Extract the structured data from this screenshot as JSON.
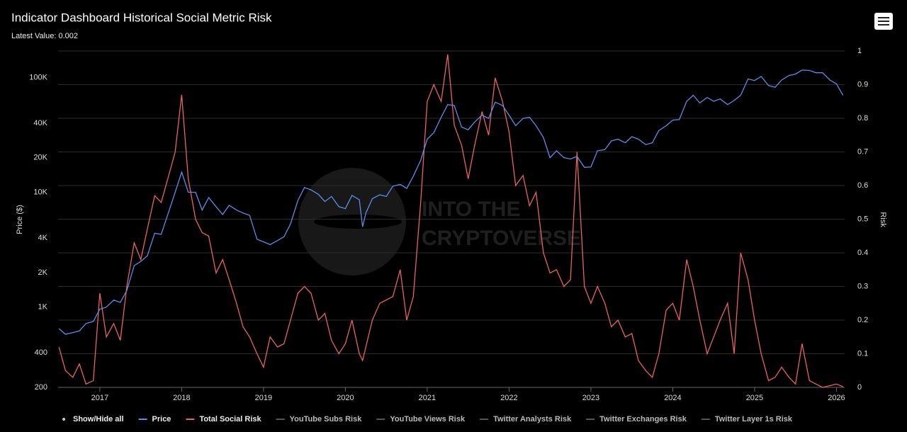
{
  "chart_data": {
    "type": "line",
    "title": "Indicator Dashboard Historical Social Metric Risk",
    "subtitle": "Latest Value: 0.002",
    "y_label": "Price ($)",
    "y2_label": "Risk",
    "watermark": [
      "INTO THE",
      "CRYPTOVERSE"
    ],
    "x": [
      2016.5,
      2016.58,
      2016.67,
      2016.75,
      2016.83,
      2016.92,
      2017,
      2017.08,
      2017.17,
      2017.25,
      2017.33,
      2017.42,
      2017.5,
      2017.58,
      2017.67,
      2017.75,
      2017.83,
      2017.92,
      2018,
      2018.08,
      2018.17,
      2018.25,
      2018.33,
      2018.42,
      2018.5,
      2018.58,
      2018.67,
      2018.75,
      2018.83,
      2018.92,
      2019,
      2019.08,
      2019.17,
      2019.25,
      2019.33,
      2019.42,
      2019.5,
      2019.58,
      2019.67,
      2019.75,
      2019.83,
      2019.92,
      2020,
      2020.08,
      2020.17,
      2020.21,
      2020.25,
      2020.33,
      2020.42,
      2020.5,
      2020.58,
      2020.67,
      2020.75,
      2020.83,
      2020.92,
      2021,
      2021.08,
      2021.17,
      2021.25,
      2021.33,
      2021.42,
      2021.5,
      2021.58,
      2021.67,
      2021.75,
      2021.83,
      2021.92,
      2022,
      2022.08,
      2022.17,
      2022.25,
      2022.33,
      2022.42,
      2022.5,
      2022.58,
      2022.67,
      2022.75,
      2022.83,
      2022.92,
      2023,
      2023.08,
      2023.17,
      2023.25,
      2023.33,
      2023.42,
      2023.5,
      2023.58,
      2023.67,
      2023.75,
      2023.83,
      2023.92,
      2024,
      2024.08,
      2024.17,
      2024.25,
      2024.33,
      2024.42,
      2024.5,
      2024.58,
      2024.67,
      2024.75,
      2024.83,
      2024.92,
      2025,
      2025.08,
      2025.17,
      2025.25,
      2025.33,
      2025.42,
      2025.5,
      2025.58,
      2025.67,
      2025.75,
      2025.83,
      2025.92,
      2026,
      2026.08
    ],
    "series": [
      {
        "name": "Price",
        "color": "#5b8ee6",
        "axis": "y",
        "values": [
          650,
          580,
          600,
          620,
          720,
          750,
          960,
          1000,
          1150,
          1100,
          1400,
          2300,
          2500,
          2800,
          4400,
          4300,
          6400,
          10000,
          15000,
          10000,
          10000,
          7000,
          9000,
          7500,
          6400,
          7700,
          7000,
          6600,
          6300,
          3900,
          3700,
          3500,
          3800,
          4100,
          5300,
          8500,
          11000,
          10500,
          9600,
          8300,
          9200,
          7500,
          7200,
          9400,
          8600,
          5000,
          6600,
          8800,
          9500,
          9200,
          11300,
          11700,
          10800,
          13800,
          19000,
          29000,
          33000,
          45000,
          58000,
          57000,
          37000,
          35000,
          41000,
          47000,
          44000,
          61000,
          57000,
          47000,
          38000,
          44000,
          45000,
          38000,
          30000,
          20000,
          23000,
          20000,
          19500,
          20500,
          16500,
          16600,
          23000,
          23500,
          28000,
          29000,
          27000,
          30500,
          29000,
          26000,
          27000,
          34500,
          38000,
          42500,
          43000,
          62000,
          70000,
          60000,
          67000,
          62000,
          65000,
          58000,
          63000,
          70000,
          97000,
          94000,
          102000,
          85000,
          82000,
          95000,
          104000,
          107000,
          116000,
          115000,
          110000,
          110000,
          95000,
          88000,
          70000
        ]
      },
      {
        "name": "Total Social Risk",
        "color": "#e8645f",
        "axis": "y2",
        "values": [
          0.12,
          0.05,
          0.03,
          0.07,
          0.01,
          0.02,
          0.28,
          0.15,
          0.19,
          0.14,
          0.3,
          0.43,
          0.38,
          0.47,
          0.57,
          0.55,
          0.62,
          0.7,
          0.87,
          0.62,
          0.5,
          0.46,
          0.45,
          0.34,
          0.38,
          0.32,
          0.25,
          0.18,
          0.15,
          0.1,
          0.06,
          0.15,
          0.12,
          0.13,
          0.2,
          0.28,
          0.3,
          0.28,
          0.2,
          0.22,
          0.14,
          0.1,
          0.13,
          0.2,
          0.1,
          0.08,
          0.12,
          0.2,
          0.25,
          0.26,
          0.27,
          0.35,
          0.2,
          0.27,
          0.55,
          0.85,
          0.9,
          0.85,
          0.99,
          0.78,
          0.72,
          0.62,
          0.72,
          0.82,
          0.75,
          0.92,
          0.85,
          0.76,
          0.6,
          0.63,
          0.54,
          0.58,
          0.4,
          0.34,
          0.35,
          0.3,
          0.32,
          0.7,
          0.3,
          0.25,
          0.3,
          0.25,
          0.18,
          0.2,
          0.15,
          0.16,
          0.08,
          0.05,
          0.03,
          0.1,
          0.23,
          0.25,
          0.2,
          0.38,
          0.3,
          0.2,
          0.1,
          0.15,
          0.2,
          0.25,
          0.1,
          0.4,
          0.32,
          0.2,
          0.1,
          0.02,
          0.03,
          0.06,
          0.03,
          0.01,
          0.13,
          0.02,
          0.01,
          0,
          0.005,
          0.01,
          0.002
        ]
      }
    ],
    "legend": {
      "show_hide_all": "Show/Hide all",
      "hidden": [
        "YouTube Subs Risk",
        "YouTube Views Risk",
        "Twitter Analysts Risk",
        "Twitter Exchanges Risk",
        "Twitter Layer 1s Risk"
      ]
    },
    "xlim": [
      2016.49,
      2026.1
    ],
    "xticks": [
      2017,
      2018,
      2019,
      2020,
      2021,
      2022,
      2023,
      2024,
      2025,
      2026
    ],
    "ylog": true,
    "ylim": [
      200,
      170000
    ],
    "yticks": [
      200,
      400,
      {
        "value": 1000,
        "label": "1K"
      },
      {
        "value": 2000,
        "label": "2K"
      },
      {
        "value": 4000,
        "label": "4K"
      },
      {
        "value": 10000,
        "label": "10K"
      },
      {
        "value": 20000,
        "label": "20K"
      },
      {
        "value": 40000,
        "label": "40K"
      },
      {
        "value": 100000,
        "label": "100K"
      }
    ],
    "y2lim": [
      0,
      1
    ],
    "y2ticks": [
      0,
      0.1,
      0.2,
      0.3,
      0.4,
      0.5,
      0.6,
      0.7,
      0.8,
      0.9,
      1
    ],
    "grid": true
  }
}
